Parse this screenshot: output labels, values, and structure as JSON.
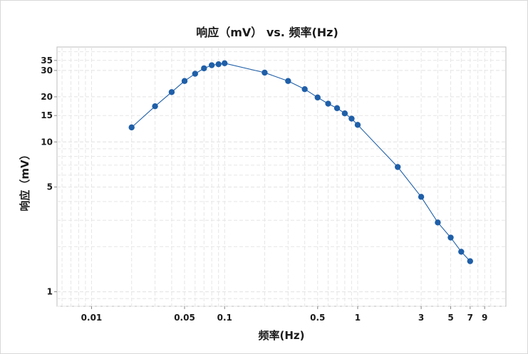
{
  "chart_data": {
    "type": "line",
    "title": "响应（mV） vs. 频率(Hz)",
    "xlabel": "频率(Hz)",
    "ylabel": "响应（mV）",
    "xscale": "log",
    "yscale": "log",
    "xlim": [
      0.0055,
      13
    ],
    "ylim": [
      0.8,
      43
    ],
    "x_ticks": [
      0.01,
      0.05,
      0.1,
      0.5,
      1,
      3,
      5,
      7,
      9
    ],
    "x_tick_labels": [
      "0.01",
      "0.05",
      "0.1",
      "0.5",
      "1",
      "3",
      "5",
      "7",
      "9"
    ],
    "y_ticks": [
      1,
      5,
      10,
      15,
      20,
      30,
      35
    ],
    "y_tick_labels": [
      "1",
      "5",
      "10",
      "15",
      "20",
      "30",
      "35"
    ],
    "grid": true,
    "series": [
      {
        "color": "#1f5fa8",
        "marker": "circle",
        "x": [
          0.02,
          0.03,
          0.04,
          0.05,
          0.06,
          0.07,
          0.08,
          0.09,
          0.1,
          0.2,
          0.3,
          0.4,
          0.5,
          0.6,
          0.7,
          0.8,
          0.9,
          1,
          2,
          3,
          4,
          5,
          6,
          7
        ],
        "y": [
          12.5,
          17.3,
          21.5,
          25.5,
          28.5,
          31,
          32.5,
          33,
          33.5,
          29,
          25.5,
          22.5,
          19.8,
          18,
          16.8,
          15.5,
          14.3,
          13,
          6.8,
          4.3,
          2.9,
          2.3,
          1.85,
          1.6
        ]
      }
    ]
  }
}
